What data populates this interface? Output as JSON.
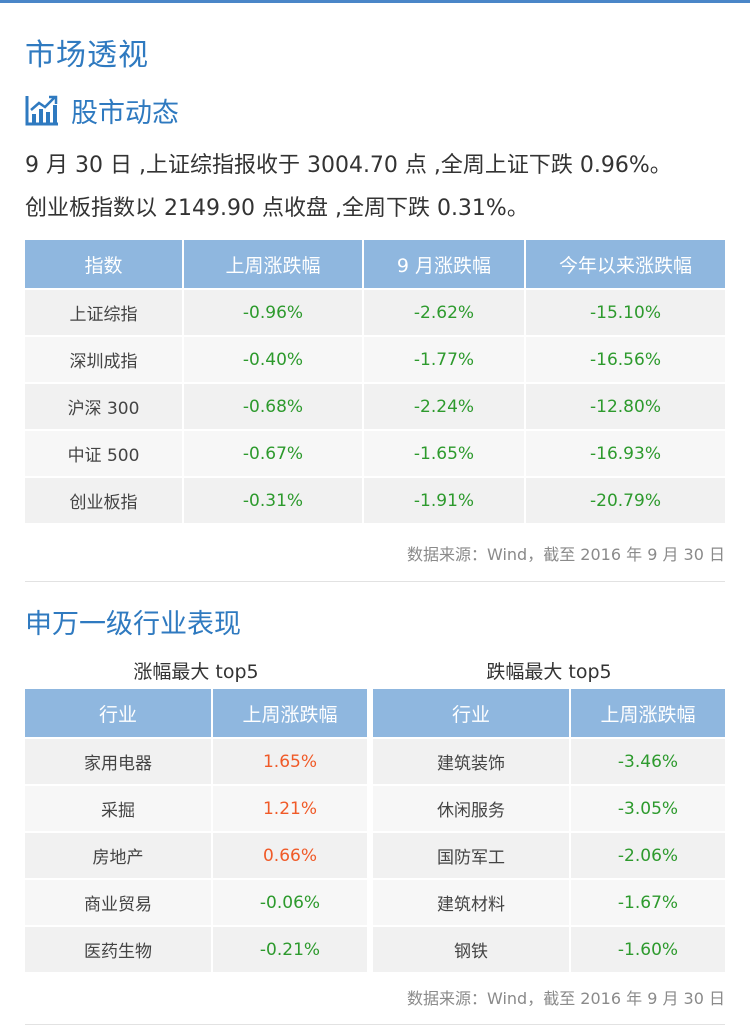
{
  "title": "市场透视",
  "section1": {
    "heading": "股市动态",
    "icon": "bar-chart-trend-icon",
    "line1": "9 月 30 日 ,上证综指报收于 3004.70 点 ,全周上证下跌 0.96%。",
    "line2": "创业板指数以 2149.90 点收盘 ,全周下跌 0.31%。",
    "table": {
      "headers": [
        "指数",
        "上周涨跌幅",
        "9 月涨跌幅",
        "今年以来涨跌幅"
      ],
      "rows": [
        [
          "上证综指",
          "-0.96%",
          "-2.62%",
          "-15.10%"
        ],
        [
          "深圳成指",
          "-0.40%",
          "-1.77%",
          "-16.56%"
        ],
        [
          "沪深 300",
          "-0.68%",
          "-2.24%",
          "-12.80%"
        ],
        [
          "中证 500",
          "-0.67%",
          "-1.65%",
          "-16.93%"
        ],
        [
          "创业板指",
          "-0.31%",
          "-1.91%",
          "-20.79%"
        ]
      ]
    },
    "source": "数据来源：Wind，截至 2016 年 9 月 30 日"
  },
  "section2": {
    "heading": "申万一级行业表现",
    "left": {
      "caption": "涨幅最大 top5",
      "headers": [
        "行业",
        "上周涨跌幅"
      ],
      "rows": [
        [
          "家用电器",
          "1.65%"
        ],
        [
          "采掘",
          "1.21%"
        ],
        [
          "房地产",
          "0.66%"
        ],
        [
          "商业贸易",
          "-0.06%"
        ],
        [
          "医药生物",
          "-0.21%"
        ]
      ]
    },
    "right": {
      "caption": "跌幅最大 top5",
      "headers": [
        "行业",
        "上周涨跌幅"
      ],
      "rows": [
        [
          "建筑装饰",
          "-3.46%"
        ],
        [
          "休闲服务",
          "-3.05%"
        ],
        [
          "国防军工",
          "-2.06%"
        ],
        [
          "建筑材料",
          "-1.67%"
        ],
        [
          "钢铁",
          "-1.60%"
        ]
      ]
    },
    "source": "数据来源：Wind，截至 2016 年 9 月 30 日"
  },
  "colors": {
    "accent": "#2f7ac0",
    "header_bg": "#8fb7df",
    "negative": "#2d9a2d",
    "positive": "#f05a28"
  }
}
